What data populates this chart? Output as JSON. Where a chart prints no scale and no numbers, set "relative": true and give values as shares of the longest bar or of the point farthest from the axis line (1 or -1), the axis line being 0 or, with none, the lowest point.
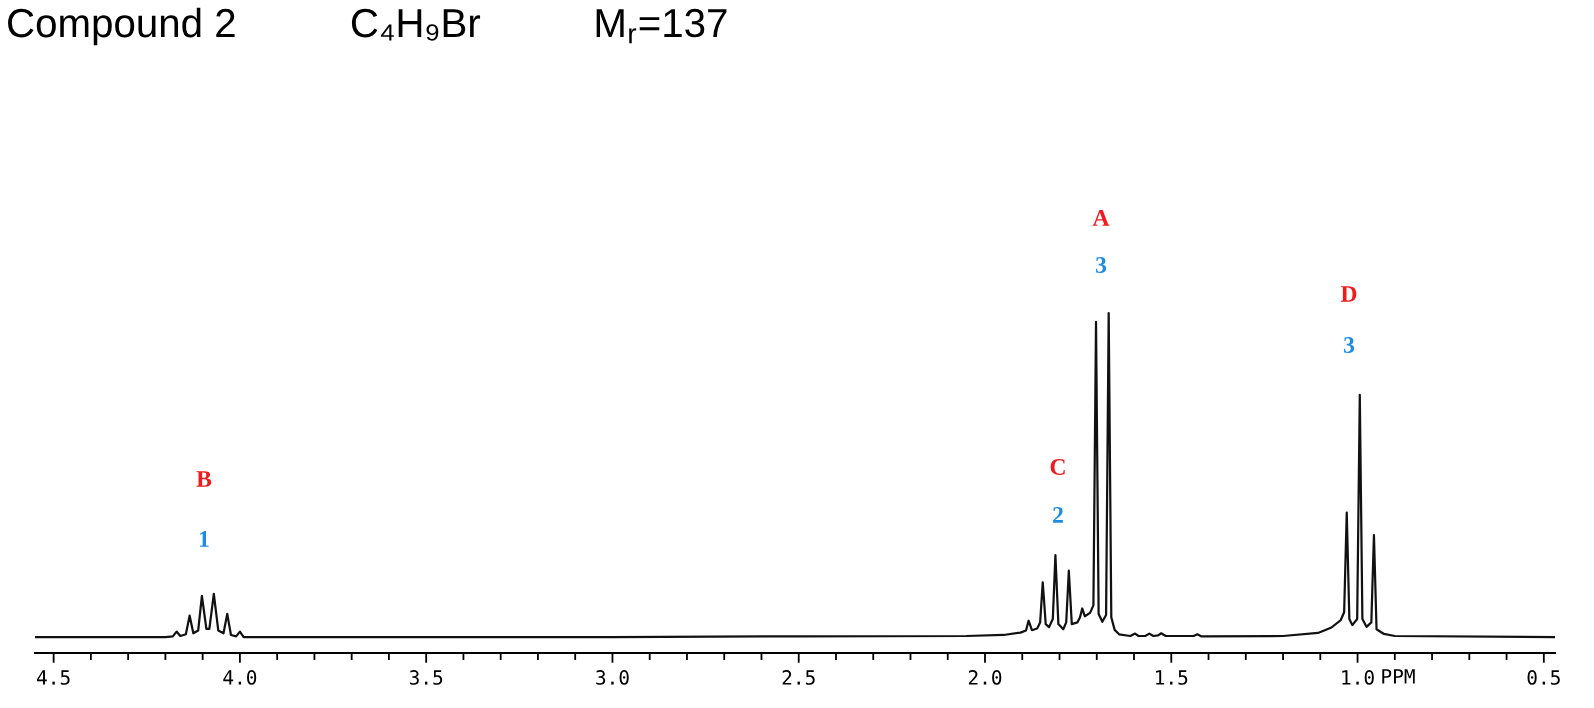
{
  "chart_data": {
    "type": "line",
    "title": "Compound 2",
    "relative": true,
    "xlabel": "PPM",
    "xlim": [
      4.55,
      0.47
    ],
    "xticks": [
      {
        "value": 4.5,
        "label": "4.5"
      },
      {
        "value": 4.4,
        "label": null
      },
      {
        "value": 4.3,
        "label": null
      },
      {
        "value": 4.2,
        "label": null
      },
      {
        "value": 4.1,
        "label": null
      },
      {
        "value": 4.0,
        "label": "4.0"
      },
      {
        "value": 3.9,
        "label": null
      },
      {
        "value": 3.8,
        "label": null
      },
      {
        "value": 3.7,
        "label": null
      },
      {
        "value": 3.6,
        "label": null
      },
      {
        "value": 3.5,
        "label": "3.5"
      },
      {
        "value": 3.4,
        "label": null
      },
      {
        "value": 3.3,
        "label": null
      },
      {
        "value": 3.2,
        "label": null
      },
      {
        "value": 3.1,
        "label": null
      },
      {
        "value": 3.0,
        "label": "3.0"
      },
      {
        "value": 2.9,
        "label": null
      },
      {
        "value": 2.8,
        "label": null
      },
      {
        "value": 2.7,
        "label": null
      },
      {
        "value": 2.6,
        "label": null
      },
      {
        "value": 2.5,
        "label": "2.5"
      },
      {
        "value": 2.4,
        "label": null
      },
      {
        "value": 2.3,
        "label": null
      },
      {
        "value": 2.2,
        "label": null
      },
      {
        "value": 2.1,
        "label": null
      },
      {
        "value": 2.0,
        "label": "2.0"
      },
      {
        "value": 1.9,
        "label": null
      },
      {
        "value": 1.8,
        "label": null
      },
      {
        "value": 1.7,
        "label": null
      },
      {
        "value": 1.6,
        "label": null
      },
      {
        "value": 1.5,
        "label": "1.5"
      },
      {
        "value": 1.4,
        "label": null
      },
      {
        "value": 1.3,
        "label": null
      },
      {
        "value": 1.2,
        "label": null
      },
      {
        "value": 1.1,
        "label": null
      },
      {
        "value": 1.0,
        "label": "1.0"
      },
      {
        "value": 0.9,
        "label": null
      },
      {
        "value": 0.8,
        "label": null
      },
      {
        "value": 0.7,
        "label": null
      },
      {
        "value": 0.6,
        "label": null
      },
      {
        "value": 0.5,
        "label": "0.5"
      }
    ],
    "x": [
      4.55,
      4.2,
      4.18,
      4.17,
      4.16,
      4.145,
      4.135,
      4.125,
      4.112,
      4.102,
      4.09,
      4.082,
      4.07,
      4.058,
      4.044,
      4.034,
      4.024,
      4.01,
      4.0,
      3.99,
      3.0,
      2.5,
      2.05,
      1.95,
      1.905,
      1.89,
      1.883,
      1.874,
      1.86,
      1.852,
      1.845,
      1.837,
      1.828,
      1.818,
      1.811,
      1.803,
      1.79,
      1.782,
      1.775,
      1.767,
      1.752,
      1.745,
      1.739,
      1.732,
      1.718,
      1.709,
      1.702,
      1.695,
      1.685,
      1.675,
      1.668,
      1.661,
      1.652,
      1.64,
      1.61,
      1.597,
      1.588,
      1.57,
      1.559,
      1.548,
      1.535,
      1.527,
      1.515,
      1.44,
      1.43,
      1.42,
      1.2,
      1.106,
      1.07,
      1.045,
      1.036,
      1.029,
      1.022,
      1.014,
      1.001,
      0.994,
      0.987,
      0.976,
      0.963,
      0.956,
      0.949,
      0.929,
      0.9,
      0.47
    ],
    "series": [
      {
        "color": "#111111",
        "values": [
          0.047,
          0.047,
          0.049,
          0.063,
          0.05,
          0.055,
          0.11,
          0.058,
          0.066,
          0.168,
          0.071,
          0.071,
          0.174,
          0.066,
          0.058,
          0.115,
          0.053,
          0.049,
          0.063,
          0.047,
          0.047,
          0.049,
          0.05,
          0.053,
          0.06,
          0.066,
          0.095,
          0.067,
          0.072,
          0.09,
          0.208,
          0.085,
          0.076,
          0.1,
          0.288,
          0.085,
          0.07,
          0.09,
          0.242,
          0.085,
          0.09,
          0.105,
          0.131,
          0.108,
          0.118,
          0.14,
          0.974,
          0.115,
          0.092,
          0.112,
          1.0,
          0.105,
          0.068,
          0.055,
          0.05,
          0.057,
          0.05,
          0.05,
          0.057,
          0.05,
          0.052,
          0.058,
          0.05,
          0.05,
          0.055,
          0.049,
          0.05,
          0.059,
          0.075,
          0.097,
          0.12,
          0.413,
          0.1,
          0.082,
          0.1,
          0.759,
          0.1,
          0.077,
          0.09,
          0.347,
          0.07,
          0.056,
          0.05,
          0.047
        ]
      }
    ],
    "annotations": [
      "C₄H₉Br",
      "M$_{r}$=137",
      "B",
      "1",
      "C",
      "2",
      "A",
      "3",
      "D",
      "3"
    ]
  }
}
